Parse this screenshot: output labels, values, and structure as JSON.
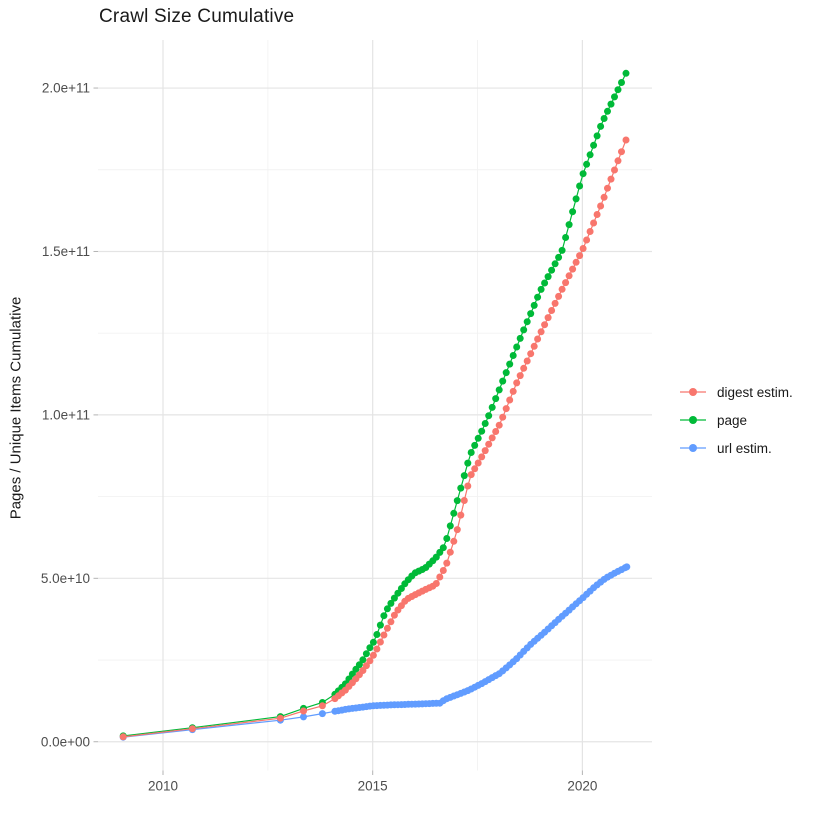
{
  "chart_data": {
    "type": "line",
    "title": "Crawl Size Cumulative",
    "ylabel": "Pages / Unique Items Cumulative",
    "xlabel": "",
    "grid": true,
    "legend_position": "right-center",
    "xlim": [
      2008.45,
      2021.66
    ],
    "ylim": [
      -8800000000.0,
      214700000000.0
    ],
    "x_ticks": [
      {
        "value": 2010,
        "label": "2010"
      },
      {
        "value": 2015,
        "label": "2015"
      },
      {
        "value": 2020,
        "label": "2020"
      }
    ],
    "x_minor_ticks": [
      2012.5,
      2017.5
    ],
    "y_ticks": [
      {
        "value": 0,
        "label": "0.0e+00"
      },
      {
        "value": 50000000000.0,
        "label": "5.0e+10"
      },
      {
        "value": 100000000000.0,
        "label": "1.0e+11"
      },
      {
        "value": 150000000000.0,
        "label": "1.5e+11"
      },
      {
        "value": 200000000000.0,
        "label": "2.0e+11"
      }
    ],
    "y_minor_ticks": [
      25000000000.0,
      75000000000.0,
      125000000000.0,
      175000000000.0
    ],
    "series": [
      {
        "name": "digest estim.",
        "color": "#F8766D",
        "points": [
          [
            2009.05,
            1500000000.0
          ],
          [
            2010.7,
            4000000000.0
          ],
          [
            2012.8,
            7200000000.0
          ],
          [
            2013.35,
            9400000000.0
          ],
          [
            2013.8,
            11000000000.0
          ],
          [
            2014.1,
            13200000000.0
          ],
          [
            2014.35,
            15800000000.0
          ],
          [
            2014.55,
            18500000000.0
          ],
          [
            2014.75,
            21500000000.0
          ],
          [
            2014.92,
            24500000000.0
          ],
          [
            2015.05,
            27100000000.0
          ],
          [
            2015.3,
            33500000000.0
          ],
          [
            2015.55,
            39500000000.0
          ],
          [
            2015.8,
            43500000000.0
          ],
          [
            2016.0,
            44900000000.0
          ],
          [
            2016.25,
            46500000000.0
          ],
          [
            2016.5,
            48000000000.0
          ],
          [
            2016.75,
            54000000000.0
          ],
          [
            2017.0,
            64000000000.0
          ],
          [
            2017.32,
            81100000000.0
          ],
          [
            2017.56,
            86200000000.0
          ],
          [
            2017.8,
            91800000000.0
          ],
          [
            2018.04,
            97400000000.0
          ],
          [
            2018.43,
            109700000000.0
          ],
          [
            2019.0,
            125000000000.0
          ],
          [
            2019.5,
            138000000000.0
          ],
          [
            2020.0,
            150400000000.0
          ],
          [
            2020.5,
            166000000000.0
          ],
          [
            2021.04,
            184100000000.0
          ]
        ]
      },
      {
        "name": "page",
        "color": "#00BA38",
        "points": [
          [
            2009.05,
            1800000000.0
          ],
          [
            2010.7,
            4300000000.0
          ],
          [
            2012.8,
            7700000000.0
          ],
          [
            2013.35,
            10200000000.0
          ],
          [
            2013.8,
            12000000000.0
          ],
          [
            2014.1,
            14500000000.0
          ],
          [
            2014.35,
            17700000000.0
          ],
          [
            2014.55,
            21300000000.0
          ],
          [
            2014.75,
            24700000000.0
          ],
          [
            2014.92,
            28500000000.0
          ],
          [
            2015.05,
            31100000000.0
          ],
          [
            2015.3,
            39700000000.0
          ],
          [
            2015.55,
            44600000000.0
          ],
          [
            2015.8,
            48900000000.0
          ],
          [
            2016.0,
            51600000000.0
          ],
          [
            2016.25,
            53100000000.0
          ],
          [
            2016.5,
            56200000000.0
          ],
          [
            2016.72,
            60000000000.0
          ],
          [
            2017.0,
            73000000000.0
          ],
          [
            2017.32,
            87700000000.0
          ],
          [
            2017.6,
            95000000000.0
          ],
          [
            2017.81,
            101000000000.0
          ],
          [
            2018.08,
            109700000000.0
          ],
          [
            2018.6,
            126000000000.0
          ],
          [
            2019.0,
            138000000000.0
          ],
          [
            2019.51,
            150000000000.0
          ],
          [
            2020.0,
            173200000000.0
          ],
          [
            2020.46,
            189200000000.0
          ],
          [
            2021.04,
            204500000000.0
          ]
        ]
      },
      {
        "name": "url estim.",
        "color": "#619CFF",
        "points": [
          [
            2009.05,
            1400000000.0
          ],
          [
            2010.7,
            3700000000.0
          ],
          [
            2012.8,
            6600000000.0
          ],
          [
            2013.35,
            7600000000.0
          ],
          [
            2013.8,
            8600000000.0
          ],
          [
            2014.1,
            9300000000.0
          ],
          [
            2014.4,
            10000000000.0
          ],
          [
            2014.7,
            10500000000.0
          ],
          [
            2015.0,
            11000000000.0
          ],
          [
            2015.5,
            11300000000.0
          ],
          [
            2016.0,
            11500000000.0
          ],
          [
            2016.6,
            11800000000.0
          ],
          [
            2016.73,
            13000000000.0
          ],
          [
            2017.0,
            14300000000.0
          ],
          [
            2017.3,
            15800000000.0
          ],
          [
            2017.6,
            17800000000.0
          ],
          [
            2018.04,
            21000000000.0
          ],
          [
            2018.4,
            25000000000.0
          ],
          [
            2018.75,
            29600000000.0
          ],
          [
            2019.1,
            33500000000.0
          ],
          [
            2019.5,
            38200000000.0
          ],
          [
            2020.0,
            43900000000.0
          ],
          [
            2020.3,
            47500000000.0
          ],
          [
            2020.55,
            50000000000.0
          ],
          [
            2020.8,
            51800000000.0
          ],
          [
            2021.06,
            53500000000.0
          ]
        ]
      }
    ]
  }
}
